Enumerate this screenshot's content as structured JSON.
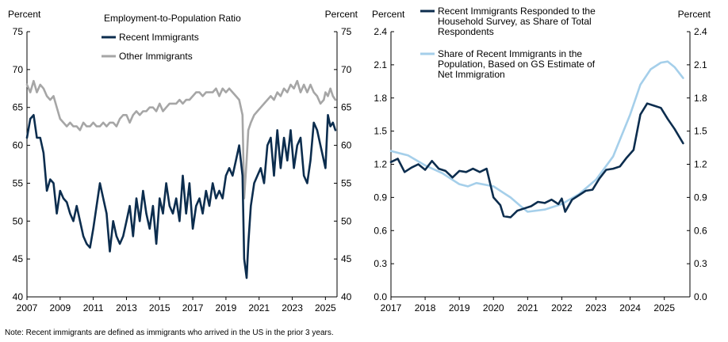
{
  "chart_data": [
    {
      "type": "line",
      "title": "Employment-to-Population  Ratio",
      "ylabel_left": "Percent",
      "ylabel_right": "Percent",
      "xlim": [
        2007,
        2025.7
      ],
      "ylim": [
        40,
        75
      ],
      "yticks": [
        "40",
        "45",
        "50",
        "55",
        "60",
        "65",
        "70",
        "75"
      ],
      "xticks": [
        "2007",
        "2009",
        "2011",
        "2013",
        "2015",
        "2017",
        "2019",
        "2021",
        "2023",
        "2025"
      ],
      "grid": false,
      "legend_position": "top-center",
      "series": [
        {
          "name": "Recent Immigrants",
          "color": "#0c2d4e",
          "x": [
            2007.0,
            2007.2,
            2007.4,
            2007.6,
            2007.8,
            2008.0,
            2008.2,
            2008.4,
            2008.6,
            2008.8,
            2009.0,
            2009.2,
            2009.4,
            2009.6,
            2009.8,
            2010.0,
            2010.2,
            2010.4,
            2010.6,
            2010.8,
            2011.0,
            2011.2,
            2011.4,
            2011.6,
            2011.8,
            2012.0,
            2012.2,
            2012.4,
            2012.6,
            2012.8,
            2013.0,
            2013.2,
            2013.4,
            2013.6,
            2013.8,
            2014.0,
            2014.2,
            2014.4,
            2014.6,
            2014.8,
            2015.0,
            2015.2,
            2015.4,
            2015.6,
            2015.8,
            2016.0,
            2016.2,
            2016.4,
            2016.6,
            2016.8,
            2017.0,
            2017.2,
            2017.4,
            2017.6,
            2017.8,
            2018.0,
            2018.2,
            2018.4,
            2018.6,
            2018.8,
            2019.0,
            2019.2,
            2019.4,
            2019.6,
            2019.8,
            2020.0,
            2020.1,
            2020.25,
            2020.35,
            2020.5,
            2020.7,
            2020.9,
            2021.1,
            2021.3,
            2021.5,
            2021.7,
            2021.9,
            2022.1,
            2022.3,
            2022.5,
            2022.7,
            2022.9,
            2023.1,
            2023.3,
            2023.5,
            2023.7,
            2023.9,
            2024.1,
            2024.3,
            2024.5,
            2024.7,
            2024.9,
            2025.0,
            2025.15,
            2025.3,
            2025.45,
            2025.6
          ],
          "values": [
            61,
            63.5,
            64,
            61,
            61,
            59,
            54,
            55.5,
            55,
            51,
            54,
            53,
            52.5,
            51,
            50,
            52,
            50,
            48,
            47,
            46.5,
            49,
            52,
            55,
            53,
            51,
            46,
            50,
            48,
            47,
            48,
            50,
            52,
            48,
            53,
            50,
            54,
            51,
            49,
            52,
            47,
            53,
            51,
            55,
            52,
            51,
            53,
            50,
            56,
            51,
            55,
            49,
            52,
            53,
            51,
            54,
            52,
            55,
            53,
            54,
            53,
            56,
            57,
            56,
            58,
            60,
            56,
            45,
            42.5,
            47,
            52,
            55,
            56,
            57,
            55,
            60,
            61,
            56,
            62,
            57,
            61,
            58,
            62,
            57,
            60,
            61,
            56,
            55,
            58,
            63,
            62,
            60,
            58,
            57,
            64,
            62.5,
            63,
            62
          ]
        },
        {
          "name": "Other Immigrants",
          "color": "#a6a6a6",
          "x": [
            2007.0,
            2007.2,
            2007.4,
            2007.6,
            2007.8,
            2008.0,
            2008.2,
            2008.4,
            2008.6,
            2008.8,
            2009.0,
            2009.2,
            2009.4,
            2009.6,
            2009.8,
            2010.0,
            2010.2,
            2010.4,
            2010.6,
            2010.8,
            2011.0,
            2011.2,
            2011.4,
            2011.6,
            2011.8,
            2012.0,
            2012.2,
            2012.4,
            2012.6,
            2012.8,
            2013.0,
            2013.2,
            2013.4,
            2013.6,
            2013.8,
            2014.0,
            2014.2,
            2014.4,
            2014.6,
            2014.8,
            2015.0,
            2015.2,
            2015.4,
            2015.6,
            2015.8,
            2016.0,
            2016.2,
            2016.4,
            2016.6,
            2016.8,
            2017.0,
            2017.2,
            2017.4,
            2017.6,
            2017.8,
            2018.0,
            2018.2,
            2018.4,
            2018.6,
            2018.8,
            2019.0,
            2019.2,
            2019.4,
            2019.6,
            2019.8,
            2020.0,
            2020.1,
            2020.25,
            2020.35,
            2020.5,
            2020.7,
            2020.9,
            2021.1,
            2021.3,
            2021.5,
            2021.7,
            2021.9,
            2022.1,
            2022.3,
            2022.5,
            2022.7,
            2022.9,
            2023.1,
            2023.3,
            2023.5,
            2023.7,
            2023.9,
            2024.1,
            2024.3,
            2024.5,
            2024.7,
            2024.9,
            2025.0,
            2025.15,
            2025.3,
            2025.45,
            2025.6
          ],
          "values": [
            68,
            67,
            68.5,
            67,
            68,
            67.5,
            66.5,
            66,
            66.5,
            65,
            63.5,
            63,
            62.5,
            63,
            62.5,
            62.5,
            62,
            63,
            62.5,
            62.5,
            63,
            62.5,
            62.5,
            63,
            62.5,
            63,
            63,
            62.5,
            63.5,
            64,
            64,
            63,
            64,
            64.5,
            64,
            64.5,
            64.5,
            65,
            65,
            64.5,
            65.5,
            64.5,
            65,
            65.5,
            65.5,
            65.5,
            66,
            65.5,
            66,
            66,
            66.5,
            67,
            67,
            66.5,
            67,
            67,
            67,
            67.5,
            66.5,
            67.5,
            67,
            67.5,
            67,
            66.5,
            66,
            64,
            53,
            58,
            62,
            63,
            64,
            64.5,
            65,
            65.5,
            66,
            66.5,
            66,
            67,
            66.5,
            67.5,
            67,
            68,
            67.5,
            68.5,
            67,
            68,
            67,
            68,
            67,
            66.5,
            65.5,
            66,
            67,
            66.5,
            67.5,
            66.5,
            66
          ]
        }
      ]
    },
    {
      "type": "line",
      "title": "",
      "ylabel_left": "Percent",
      "ylabel_right": "Percent",
      "xlim": [
        2017,
        2025.75
      ],
      "ylim": [
        0,
        2.4
      ],
      "yticks": [
        "0.0",
        "0.3",
        "0.6",
        "0.9",
        "1.2",
        "1.5",
        "1.8",
        "2.1",
        "2.4"
      ],
      "xticks": [
        "2017",
        "2018",
        "2019",
        "2020",
        "2021",
        "2022",
        "2023",
        "2024",
        "2025"
      ],
      "grid": false,
      "legend_position": "top-center",
      "series": [
        {
          "name": "Recent Immigrants Responded to the Household Survey, as Share of Total Respondents",
          "color": "#0c2d4e",
          "x": [
            2017.0,
            2017.2,
            2017.4,
            2017.6,
            2017.8,
            2018.0,
            2018.2,
            2018.4,
            2018.6,
            2018.8,
            2019.0,
            2019.2,
            2019.4,
            2019.6,
            2019.8,
            2020.0,
            2020.2,
            2020.3,
            2020.5,
            2020.7,
            2020.9,
            2021.1,
            2021.3,
            2021.5,
            2021.7,
            2021.9,
            2022.0,
            2022.1,
            2022.3,
            2022.5,
            2022.7,
            2022.9,
            2023.1,
            2023.3,
            2023.5,
            2023.7,
            2023.9,
            2024.1,
            2024.3,
            2024.5,
            2024.7,
            2024.9,
            2025.1,
            2025.3,
            2025.55
          ],
          "values": [
            1.22,
            1.25,
            1.13,
            1.17,
            1.2,
            1.15,
            1.23,
            1.16,
            1.14,
            1.08,
            1.14,
            1.13,
            1.16,
            1.13,
            1.16,
            0.9,
            0.83,
            0.73,
            0.72,
            0.78,
            0.8,
            0.82,
            0.86,
            0.85,
            0.88,
            0.84,
            0.89,
            0.77,
            0.88,
            0.92,
            0.96,
            0.97,
            1.07,
            1.15,
            1.16,
            1.18,
            1.26,
            1.33,
            1.65,
            1.75,
            1.73,
            1.71,
            1.61,
            1.52,
            1.39
          ]
        },
        {
          "name": "Share of Recent Immigrants in the Population, Based on GS Estimate of Net Immigration",
          "color": "#a5cfea",
          "x": [
            2017.0,
            2017.5,
            2018.0,
            2018.5,
            2019.0,
            2019.25,
            2019.5,
            2020.0,
            2020.5,
            2020.8,
            2021.0,
            2021.5,
            2022.0,
            2022.5,
            2023.0,
            2023.5,
            2024.0,
            2024.3,
            2024.6,
            2024.9,
            2025.1,
            2025.3,
            2025.55
          ],
          "values": [
            1.32,
            1.28,
            1.19,
            1.12,
            1.02,
            1.0,
            1.03,
            1.0,
            0.9,
            0.82,
            0.77,
            0.79,
            0.84,
            0.93,
            1.06,
            1.27,
            1.65,
            1.92,
            2.06,
            2.12,
            2.13,
            2.08,
            1.98
          ]
        }
      ]
    }
  ],
  "footnote": "Note: Recent immigrants are defined as immigrants who arrived in the US in the prior 3 years."
}
